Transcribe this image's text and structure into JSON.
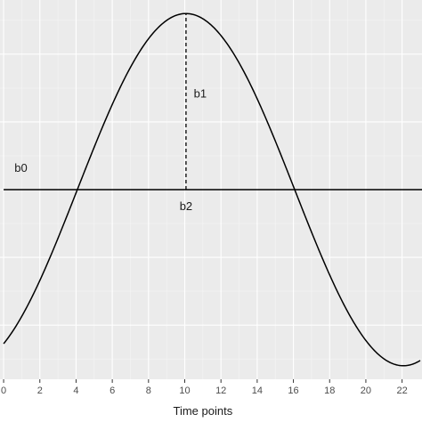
{
  "chart_data": {
    "type": "line",
    "title": "",
    "xlabel": "Time points",
    "ylabel": "",
    "xlim": [
      -0.2,
      23.1
    ],
    "ylim": [
      -1.4,
      1.4
    ],
    "x_ticks": [
      0,
      2,
      4,
      6,
      8,
      10,
      12,
      14,
      16,
      18,
      20,
      22
    ],
    "y_ticks_visible": false,
    "grid": true,
    "series": [
      {
        "kind": "cosinor",
        "mesor": 0,
        "amplitude": 1.3,
        "peak_time": 10.07,
        "period": 24,
        "x_range": [
          0,
          23
        ],
        "color": "#000000"
      }
    ],
    "reference_lines": [
      {
        "orientation": "horizontal",
        "y": 0,
        "style": "solid"
      },
      {
        "orientation": "vertical",
        "x": 10.07,
        "y_from": 0,
        "y_to": 1.3,
        "style": "dashed"
      }
    ],
    "annotations": [
      {
        "text": "b0",
        "x": 0.6,
        "y": 0.13
      },
      {
        "text": "b1",
        "x": 10.5,
        "y": 0.68
      },
      {
        "text": "b2",
        "x": 10.07,
        "y": -0.15
      }
    ]
  }
}
